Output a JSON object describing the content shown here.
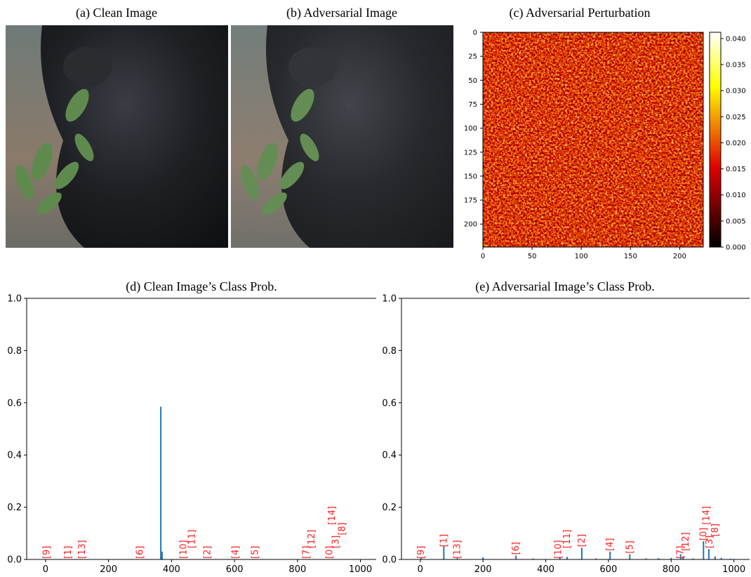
{
  "chart_data": [
    {
      "type": "image",
      "title": "(a) Clean Image"
    },
    {
      "type": "image",
      "title": "(b) Adversarial Image"
    },
    {
      "type": "heatmap",
      "title": "(c) Adversarial Perturbation",
      "xlim": [
        0,
        224
      ],
      "ylim": [
        224,
        0
      ],
      "xticks": [
        0,
        50,
        100,
        150,
        200
      ],
      "yticks": [
        0,
        25,
        50,
        75,
        100,
        125,
        150,
        175,
        200
      ],
      "colormap": "hot",
      "clim": [
        0,
        0.0412
      ],
      "cticks": [
        {
          "value": 0,
          "label": "0.000"
        },
        0.005,
        {
          "value": 0.01,
          "label": "0.010"
        },
        0.015,
        {
          "value": 0.02,
          "label": "0.020"
        },
        0.025,
        {
          "value": 0.03,
          "label": "0.030"
        },
        0.035,
        {
          "value": 0.04,
          "label": "0.040"
        }
      ]
    },
    {
      "type": "bar",
      "title": "(d) Clean Image’s Class Prob.",
      "x": [
        366,
        370
      ],
      "values": [
        0.585,
        0.03
      ],
      "color": "#1f77b4",
      "xlim": [
        -60,
        1050
      ],
      "ylim": [
        0,
        1
      ],
      "xticks": [
        0,
        200,
        400,
        600,
        800,
        1000
      ],
      "yticks": [
        {
          "value": 0,
          "label": "0.0"
        },
        0.2,
        0.4,
        0.6,
        0.8,
        {
          "value": 1,
          "label": "1.0"
        }
      ],
      "annotation_color": "#ff2020",
      "annotations": [
        {
          "text": "[9]",
          "x": 4,
          "y": 0
        },
        {
          "text": "[1]",
          "x": 71,
          "y": 0
        },
        {
          "text": "[13]",
          "x": 116,
          "y": 0
        },
        {
          "text": "[6]",
          "x": 300,
          "y": 0
        },
        {
          "text": "[10]",
          "x": 438,
          "y": 0
        },
        {
          "text": "[11]",
          "x": 465,
          "y": 0.04
        },
        {
          "text": "[2]",
          "x": 514,
          "y": 0
        },
        {
          "text": "[4]",
          "x": 603,
          "y": 0
        },
        {
          "text": "[5]",
          "x": 666,
          "y": 0
        },
        {
          "text": "[7]",
          "x": 828,
          "y": 0
        },
        {
          "text": "[12]",
          "x": 845,
          "y": 0.04
        },
        {
          "text": "[0]",
          "x": 902,
          "y": 0
        },
        {
          "text": "[3]",
          "x": 922,
          "y": 0.04
        },
        {
          "text": "[14]",
          "x": 910,
          "y": 0.13
        },
        {
          "text": "[8]",
          "x": 942,
          "y": 0.09
        }
      ]
    },
    {
      "type": "bar",
      "title": "(e) Adversarial Image’s Class Prob.",
      "x": [
        3,
        75,
        118,
        200,
        305,
        360,
        445,
        468,
        515,
        560,
        605,
        668,
        720,
        760,
        800,
        830,
        838,
        870,
        903,
        920,
        940,
        960,
        990
      ],
      "values": [
        0.008,
        0.05,
        0.005,
        0.008,
        0.015,
        0.004,
        0.01,
        0.01,
        0.045,
        0.004,
        0.03,
        0.02,
        0.004,
        0.005,
        0.006,
        0.02,
        0.012,
        0.004,
        0.07,
        0.04,
        0.012,
        0.006,
        0.003
      ],
      "color": "#1f77b4",
      "xlim": [
        -60,
        1050
      ],
      "ylim": [
        0,
        1
      ],
      "xticks": [
        0,
        200,
        400,
        600,
        800,
        1000
      ],
      "yticks": [
        {
          "value": 0,
          "label": "0.0"
        },
        0.2,
        0.4,
        0.6,
        0.8,
        {
          "value": 1,
          "label": "1.0"
        }
      ],
      "annotation_color": "#ff2020",
      "annotations": [
        {
          "text": "[9]",
          "x": 3,
          "y": 0
        },
        {
          "text": "[1]",
          "x": 75,
          "y": 0.045
        },
        {
          "text": "[13]",
          "x": 118,
          "y": 0
        },
        {
          "text": "[6]",
          "x": 305,
          "y": 0.015
        },
        {
          "text": "[10]",
          "x": 440,
          "y": 0
        },
        {
          "text": "[11]",
          "x": 468,
          "y": 0.04
        },
        {
          "text": "[2]",
          "x": 515,
          "y": 0.045
        },
        {
          "text": "[4]",
          "x": 605,
          "y": 0.03
        },
        {
          "text": "[5]",
          "x": 668,
          "y": 0.02
        },
        {
          "text": "[7]",
          "x": 830,
          "y": 0
        },
        {
          "text": "[12]",
          "x": 846,
          "y": 0.03
        },
        {
          "text": "[0]",
          "x": 903,
          "y": 0.07
        },
        {
          "text": "[3]",
          "x": 922,
          "y": 0.04
        },
        {
          "text": "[14]",
          "x": 912,
          "y": 0.13
        },
        {
          "text": "[8]",
          "x": 940,
          "y": 0.085
        }
      ]
    }
  ]
}
